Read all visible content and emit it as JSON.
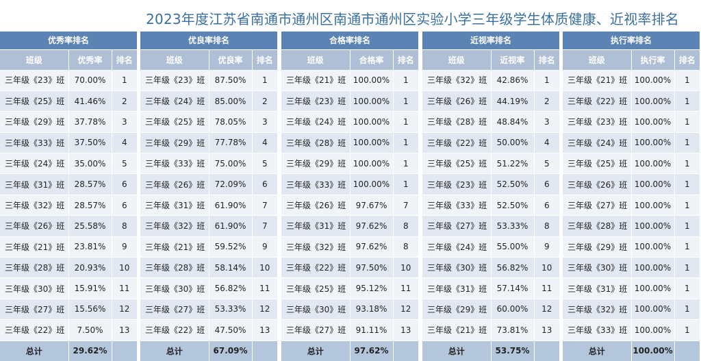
{
  "title": "2023年度江苏省南通市通州区南通市通州区实验小学三年级学生体质健康、近视率排名",
  "panels": [
    {
      "header": "优秀率排名",
      "col_class": "班级",
      "col_value": "优秀率",
      "col_rank": "排名",
      "rows": [
        {
          "cls": "三年级《23》班",
          "value": "70.00%",
          "rank": "1"
        },
        {
          "cls": "三年级《25》班",
          "value": "41.46%",
          "rank": "2"
        },
        {
          "cls": "三年级《29》班",
          "value": "37.78%",
          "rank": "3"
        },
        {
          "cls": "三年级《33》班",
          "value": "37.50%",
          "rank": "4"
        },
        {
          "cls": "三年级《24》班",
          "value": "35.00%",
          "rank": "5"
        },
        {
          "cls": "三年级《31》班",
          "value": "28.57%",
          "rank": "6"
        },
        {
          "cls": "三年级《32》班",
          "value": "28.57%",
          "rank": "6"
        },
        {
          "cls": "三年级《26》班",
          "value": "25.58%",
          "rank": "8"
        },
        {
          "cls": "三年级《21》班",
          "value": "23.81%",
          "rank": "9"
        },
        {
          "cls": "三年级《28》班",
          "value": "20.93%",
          "rank": "10"
        },
        {
          "cls": "三年级《30》班",
          "value": "15.91%",
          "rank": "11"
        },
        {
          "cls": "三年级《27》班",
          "value": "15.56%",
          "rank": "12"
        },
        {
          "cls": "三年级《22》班",
          "value": "7.50%",
          "rank": "13"
        }
      ],
      "total_label": "总计",
      "total_value": "29.62%"
    },
    {
      "header": "优良率排名",
      "col_class": "班级",
      "col_value": "优良率",
      "col_rank": "排名",
      "rows": [
        {
          "cls": "三年级《23》班",
          "value": "87.50%",
          "rank": "1"
        },
        {
          "cls": "三年级《24》班",
          "value": "85.00%",
          "rank": "2"
        },
        {
          "cls": "三年级《25》班",
          "value": "78.05%",
          "rank": "3"
        },
        {
          "cls": "三年级《29》班",
          "value": "77.78%",
          "rank": "4"
        },
        {
          "cls": "三年级《33》班",
          "value": "75.00%",
          "rank": "5"
        },
        {
          "cls": "三年级《26》班",
          "value": "72.09%",
          "rank": "6"
        },
        {
          "cls": "三年级《31》班",
          "value": "61.90%",
          "rank": "7"
        },
        {
          "cls": "三年级《32》班",
          "value": "61.90%",
          "rank": "7"
        },
        {
          "cls": "三年级《21》班",
          "value": "59.52%",
          "rank": "9"
        },
        {
          "cls": "三年级《28》班",
          "value": "58.14%",
          "rank": "10"
        },
        {
          "cls": "三年级《30》班",
          "value": "56.82%",
          "rank": "11"
        },
        {
          "cls": "三年级《27》班",
          "value": "53.33%",
          "rank": "12"
        },
        {
          "cls": "三年级《22》班",
          "value": "47.50%",
          "rank": "13"
        }
      ],
      "total_label": "总计",
      "total_value": "67.09%"
    },
    {
      "header": "合格率排名",
      "col_class": "班级",
      "col_value": "合格率",
      "col_rank": "排名",
      "rows": [
        {
          "cls": "三年级《21》班",
          "value": "100.00%",
          "rank": "1"
        },
        {
          "cls": "三年级《23》班",
          "value": "100.00%",
          "rank": "1"
        },
        {
          "cls": "三年级《24》班",
          "value": "100.00%",
          "rank": "1"
        },
        {
          "cls": "三年级《28》班",
          "value": "100.00%",
          "rank": "1"
        },
        {
          "cls": "三年级《29》班",
          "value": "100.00%",
          "rank": "1"
        },
        {
          "cls": "三年级《33》班",
          "value": "100.00%",
          "rank": "1"
        },
        {
          "cls": "三年级《26》班",
          "value": "97.67%",
          "rank": "7"
        },
        {
          "cls": "三年级《31》班",
          "value": "97.62%",
          "rank": "8"
        },
        {
          "cls": "三年级《32》班",
          "value": "97.62%",
          "rank": "8"
        },
        {
          "cls": "三年级《22》班",
          "value": "97.50%",
          "rank": "10"
        },
        {
          "cls": "三年级《25》班",
          "value": "95.12%",
          "rank": "11"
        },
        {
          "cls": "三年级《30》班",
          "value": "93.18%",
          "rank": "12"
        },
        {
          "cls": "三年级《27》班",
          "value": "91.11%",
          "rank": "13"
        }
      ],
      "total_label": "总计",
      "total_value": "97.62%"
    },
    {
      "header": "近视率排名",
      "col_class": "班级",
      "col_value": "近视率",
      "col_rank": "排名",
      "rows": [
        {
          "cls": "三年级《32》班",
          "value": "42.86%",
          "rank": "1"
        },
        {
          "cls": "三年级《26》班",
          "value": "44.19%",
          "rank": "2"
        },
        {
          "cls": "三年级《28》班",
          "value": "48.84%",
          "rank": "3"
        },
        {
          "cls": "三年级《22》班",
          "value": "50.00%",
          "rank": "4"
        },
        {
          "cls": "三年级《25》班",
          "value": "51.22%",
          "rank": "5"
        },
        {
          "cls": "三年级《23》班",
          "value": "52.50%",
          "rank": "6"
        },
        {
          "cls": "三年级《33》班",
          "value": "52.50%",
          "rank": "6"
        },
        {
          "cls": "三年级《27》班",
          "value": "53.33%",
          "rank": "8"
        },
        {
          "cls": "三年级《24》班",
          "value": "55.00%",
          "rank": "9"
        },
        {
          "cls": "三年级《30》班",
          "value": "56.82%",
          "rank": "10"
        },
        {
          "cls": "三年级《31》班",
          "value": "57.14%",
          "rank": "11"
        },
        {
          "cls": "三年级《29》班",
          "value": "60.00%",
          "rank": "12"
        },
        {
          "cls": "三年级《21》班",
          "value": "73.81%",
          "rank": "13"
        }
      ],
      "total_label": "总计",
      "total_value": "53.75%"
    },
    {
      "header": "执行率排名",
      "col_class": "班级",
      "col_value": "执行率",
      "col_rank": "排名",
      "rows": [
        {
          "cls": "三年级《21》班",
          "value": "100.00%",
          "rank": "1"
        },
        {
          "cls": "三年级《22》班",
          "value": "100.00%",
          "rank": "1"
        },
        {
          "cls": "三年级《23》班",
          "value": "100.00%",
          "rank": "1"
        },
        {
          "cls": "三年级《24》班",
          "value": "100.00%",
          "rank": "1"
        },
        {
          "cls": "三年级《25》班",
          "value": "100.00%",
          "rank": "1"
        },
        {
          "cls": "三年级《26》班",
          "value": "100.00%",
          "rank": "1"
        },
        {
          "cls": "三年级《27》班",
          "value": "100.00%",
          "rank": "1"
        },
        {
          "cls": "三年级《28》班",
          "value": "100.00%",
          "rank": "1"
        },
        {
          "cls": "三年级《29》班",
          "value": "100.00%",
          "rank": "1"
        },
        {
          "cls": "三年级《30》班",
          "value": "100.00%",
          "rank": "1"
        },
        {
          "cls": "三年级《31》班",
          "value": "100.00%",
          "rank": "1"
        },
        {
          "cls": "三年级《32》班",
          "value": "100.00%",
          "rank": "1"
        },
        {
          "cls": "三年级《33》班",
          "value": "100.00%",
          "rank": "1"
        }
      ],
      "total_label": "总计",
      "total_value": "100.00%"
    }
  ]
}
